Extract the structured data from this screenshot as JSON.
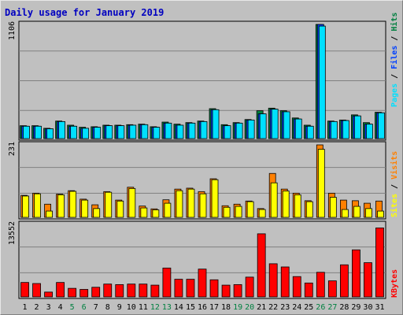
{
  "title": "Daily usage for January 2019",
  "colors": {
    "background": "#C0C0C0",
    "title": "#0000C0",
    "hits": "#008040",
    "files": "#0040FF",
    "pages": "#00E0FF",
    "visits": "#FF8000",
    "sites": "#FFFF00",
    "kbytes": "#FF0000",
    "weekend_day_label": "#008040"
  },
  "chart_data": [
    {
      "type": "bar",
      "title": "Daily usage for January 2019",
      "categories": [
        "1",
        "2",
        "3",
        "4",
        "5",
        "6",
        "7",
        "8",
        "9",
        "10",
        "11",
        "12",
        "13",
        "14",
        "15",
        "16",
        "17",
        "18",
        "19",
        "20",
        "21",
        "22",
        "23",
        "24",
        "25",
        "26",
        "27",
        "28",
        "29",
        "30",
        "31"
      ],
      "weekend_days": [
        "5",
        "6",
        "12",
        "13",
        "19",
        "20",
        "26",
        "27"
      ],
      "ymax_label": "1106",
      "ylim": [
        0,
        1106
      ],
      "legend": [
        "Hits",
        "Files",
        "Pages"
      ],
      "series": [
        {
          "name": "Hits",
          "values": [
            125,
            125,
            100,
            170,
            130,
            110,
            115,
            130,
            130,
            135,
            140,
            115,
            160,
            140,
            155,
            170,
            290,
            135,
            155,
            185,
            270,
            295,
            270,
            200,
            130,
            1106,
            170,
            180,
            230,
            155,
            255
          ]
        },
        {
          "name": "Files",
          "values": [
            120,
            120,
            95,
            165,
            120,
            100,
            110,
            125,
            125,
            130,
            135,
            110,
            150,
            130,
            150,
            165,
            280,
            125,
            150,
            180,
            240,
            285,
            260,
            190,
            120,
            1106,
            165,
            175,
            220,
            140,
            250
          ]
        },
        {
          "name": "Pages",
          "values": [
            120,
            120,
            95,
            165,
            120,
            100,
            110,
            125,
            125,
            130,
            135,
            110,
            150,
            130,
            150,
            165,
            280,
            125,
            150,
            180,
            240,
            285,
            260,
            190,
            120,
            1090,
            165,
            175,
            220,
            140,
            250
          ]
        }
      ]
    },
    {
      "type": "bar",
      "ymax_label": "231",
      "ylim": [
        0,
        231
      ],
      "legend": [
        "Visits",
        "Sites"
      ],
      "series": [
        {
          "name": "Visits",
          "values": [
            70,
            77,
            42,
            74,
            85,
            58,
            40,
            82,
            55,
            96,
            36,
            27,
            56,
            90,
            93,
            82,
            123,
            37,
            42,
            52,
            28,
            140,
            90,
            77,
            53,
            231,
            77,
            55,
            53,
            45,
            52
          ]
        },
        {
          "name": "Sites",
          "values": [
            68,
            75,
            20,
            72,
            83,
            55,
            28,
            80,
            52,
            92,
            30,
            24,
            45,
            85,
            90,
            75,
            120,
            32,
            35,
            50,
            25,
            110,
            84,
            72,
            50,
            217,
            64,
            25,
            35,
            28,
            20
          ]
        }
      ]
    },
    {
      "type": "bar",
      "ymax_label": "13552",
      "ylim": [
        0,
        13552
      ],
      "legend": [
        "KBytes"
      ],
      "series": [
        {
          "name": "KBytes",
          "values": [
            2700,
            2500,
            900,
            2700,
            1600,
            1400,
            1800,
            2400,
            2300,
            2400,
            2400,
            2200,
            5400,
            3300,
            3300,
            5200,
            3200,
            2200,
            2300,
            3700,
            11800,
            6200,
            5600,
            3800,
            2600,
            4600,
            3000,
            6000,
            8800,
            6400,
            12900
          ]
        }
      ]
    }
  ]
}
